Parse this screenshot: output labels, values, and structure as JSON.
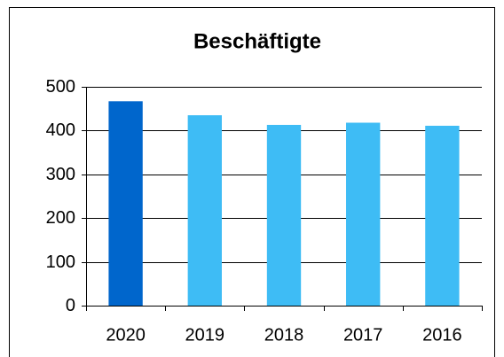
{
  "chart_data": {
    "type": "bar",
    "title": "Beschäftigte",
    "categories": [
      "2020",
      "2019",
      "2018",
      "2017",
      "2016"
    ],
    "values": [
      467,
      435,
      413,
      418,
      411
    ],
    "colors": [
      "#0066cc",
      "#3ebcf5",
      "#3ebcf5",
      "#3ebcf5",
      "#3ebcf5"
    ],
    "ylim": [
      0,
      500
    ],
    "yticks": [
      0,
      100,
      200,
      300,
      400,
      500
    ],
    "grid": true
  }
}
